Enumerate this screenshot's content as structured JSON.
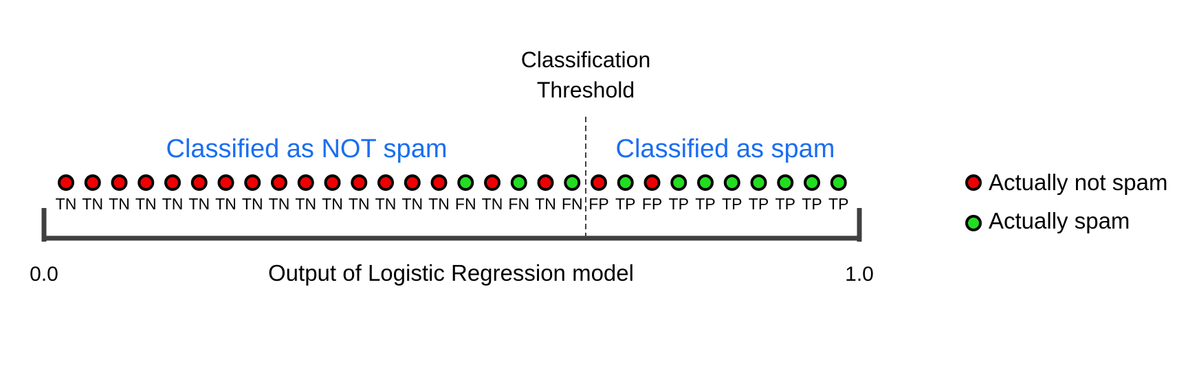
{
  "threshold_label": [
    "Classification",
    "Threshold"
  ],
  "region_left_label": "Classified as NOT spam",
  "region_right_label": "Classified as spam",
  "axis": {
    "min_label": "0.0",
    "max_label": "1.0",
    "title": "Output of Logistic Regression model"
  },
  "legend": [
    {
      "label": "Actually not spam",
      "color": "#ee0000"
    },
    {
      "label": "Actually spam",
      "color": "#22dd22"
    }
  ],
  "colors": {
    "not_spam": "#ee0000",
    "spam": "#22dd22",
    "axis": "#404040",
    "region_label": "#1a6ef0"
  },
  "examples": [
    {
      "actual": "not_spam",
      "outcome": "TN"
    },
    {
      "actual": "not_spam",
      "outcome": "TN"
    },
    {
      "actual": "not_spam",
      "outcome": "TN"
    },
    {
      "actual": "not_spam",
      "outcome": "TN"
    },
    {
      "actual": "not_spam",
      "outcome": "TN"
    },
    {
      "actual": "not_spam",
      "outcome": "TN"
    },
    {
      "actual": "not_spam",
      "outcome": "TN"
    },
    {
      "actual": "not_spam",
      "outcome": "TN"
    },
    {
      "actual": "not_spam",
      "outcome": "TN"
    },
    {
      "actual": "not_spam",
      "outcome": "TN"
    },
    {
      "actual": "not_spam",
      "outcome": "TN"
    },
    {
      "actual": "not_spam",
      "outcome": "TN"
    },
    {
      "actual": "not_spam",
      "outcome": "TN"
    },
    {
      "actual": "not_spam",
      "outcome": "TN"
    },
    {
      "actual": "not_spam",
      "outcome": "TN"
    },
    {
      "actual": "spam",
      "outcome": "FN"
    },
    {
      "actual": "not_spam",
      "outcome": "TN"
    },
    {
      "actual": "spam",
      "outcome": "FN"
    },
    {
      "actual": "not_spam",
      "outcome": "TN"
    },
    {
      "actual": "spam",
      "outcome": "FN"
    },
    {
      "actual": "not_spam",
      "outcome": "FP"
    },
    {
      "actual": "spam",
      "outcome": "TP"
    },
    {
      "actual": "not_spam",
      "outcome": "FP"
    },
    {
      "actual": "spam",
      "outcome": "TP"
    },
    {
      "actual": "spam",
      "outcome": "TP"
    },
    {
      "actual": "spam",
      "outcome": "TP"
    },
    {
      "actual": "spam",
      "outcome": "TP"
    },
    {
      "actual": "spam",
      "outcome": "TP"
    },
    {
      "actual": "spam",
      "outcome": "TP"
    },
    {
      "actual": "spam",
      "outcome": "TP"
    }
  ]
}
